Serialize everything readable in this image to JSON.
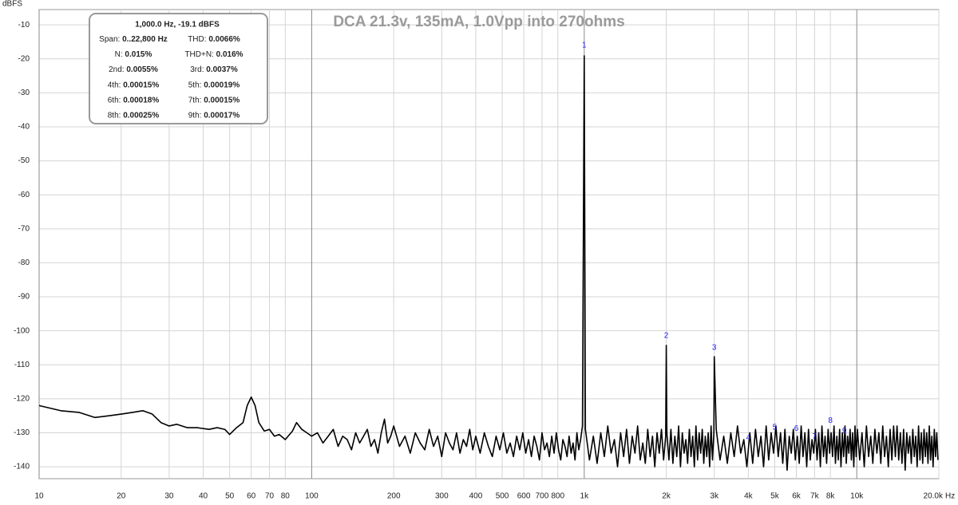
{
  "chart_data": {
    "type": "line",
    "title": "DCA 21.3v, 135mA, 1.0Vpp into 270ohms",
    "y_unit": "dBFS",
    "x_unit": "Hz",
    "log_x": true,
    "grid": true,
    "color": "#000000",
    "xlim": [
      10,
      20000
    ],
    "ylim": [
      -143.5,
      -5.5
    ],
    "yticks": [
      -10,
      -20,
      -30,
      -40,
      -50,
      -60,
      -70,
      -80,
      -90,
      -100,
      -110,
      -120,
      -130,
      -140
    ],
    "xticks": [
      10,
      20,
      30,
      40,
      50,
      60,
      70,
      80,
      100,
      200,
      300,
      400,
      500,
      600,
      700,
      800,
      {
        "value": 1000,
        "label": "1k"
      },
      {
        "value": 2000,
        "label": "2k"
      },
      {
        "value": 3000,
        "label": "3k"
      },
      {
        "value": 4000,
        "label": "4k"
      },
      {
        "value": 5000,
        "label": "5k"
      },
      {
        "value": 6000,
        "label": "6k"
      },
      {
        "value": 7000,
        "label": "7k"
      },
      {
        "value": 8000,
        "label": "8k"
      },
      {
        "value": 10000,
        "label": "10k"
      },
      {
        "value": 20000,
        "label": "20.0k"
      }
    ],
    "info_box": {
      "header": "1,000.0 Hz, -19.1 dBFS",
      "rows": [
        [
          {
            "label": "Span:",
            "value": "0..22,800 Hz"
          },
          {
            "label": "THD:",
            "value": "0.0066%"
          }
        ],
        [
          {
            "label": "N:",
            "value": "0.015%"
          },
          {
            "label": "THD+N:",
            "value": "0.016%"
          }
        ],
        [
          {
            "label": "2nd:",
            "value": "0.0055%"
          },
          {
            "label": "3rd:",
            "value": "0.0037%"
          }
        ],
        [
          {
            "label": "4th:",
            "value": "0.00015%"
          },
          {
            "label": "5th:",
            "value": "0.00019%"
          }
        ],
        [
          {
            "label": "6th:",
            "value": "0.00018%"
          },
          {
            "label": "7th:",
            "value": "0.00015%"
          }
        ],
        [
          {
            "label": "8th:",
            "value": "0.00025%"
          },
          {
            "label": "9th:",
            "value": "0.00017%"
          }
        ]
      ]
    },
    "markers": [
      {
        "label": "1",
        "x": 1000,
        "y": -16
      },
      {
        "label": "2",
        "x": 2000,
        "y": -101.5
      },
      {
        "label": "3",
        "x": 3000,
        "y": -105
      },
      {
        "label": "4",
        "x": 4000,
        "y": -131.5
      },
      {
        "label": "5",
        "x": 5000,
        "y": -128.5
      },
      {
        "label": "6",
        "x": 6000,
        "y": -128.8
      },
      {
        "label": "7",
        "x": 7000,
        "y": -131.2
      },
      {
        "label": "8",
        "x": 8000,
        "y": -126.5
      },
      {
        "label": "9",
        "x": 9000,
        "y": -129.5
      }
    ],
    "x": [
      10,
      12,
      14,
      16,
      18,
      20,
      22,
      24,
      26,
      28,
      30,
      32,
      35,
      38,
      42,
      45,
      48,
      50,
      53,
      56,
      58,
      60,
      62,
      64,
      67,
      70,
      73,
      76,
      80,
      85,
      88,
      92,
      96,
      100,
      105,
      110,
      115,
      120,
      125,
      130,
      135,
      140,
      145,
      150,
      155,
      160,
      165,
      170,
      175,
      180,
      185,
      190,
      195,
      200,
      210,
      220,
      230,
      240,
      250,
      260,
      270,
      280,
      290,
      300,
      310,
      320,
      330,
      340,
      350,
      360,
      370,
      380,
      390,
      400,
      415,
      430,
      445,
      460,
      475,
      490,
      505,
      520,
      535,
      550,
      565,
      580,
      595,
      610,
      625,
      640,
      655,
      670,
      685,
      700,
      715,
      730,
      745,
      760,
      775,
      790,
      805,
      820,
      835,
      850,
      865,
      880,
      895,
      910,
      925,
      940,
      955,
      970,
      985,
      1000,
      1010,
      1045,
      1080,
      1115,
      1150,
      1185,
      1220,
      1255,
      1290,
      1325,
      1360,
      1395,
      1430,
      1465,
      1500,
      1535,
      1570,
      1605,
      1640,
      1675,
      1710,
      1745,
      1780,
      1815,
      1850,
      1885,
      1920,
      1955,
      1990,
      2000,
      2010,
      2045,
      2080,
      2115,
      2150,
      2185,
      2220,
      2255,
      2290,
      2325,
      2360,
      2395,
      2430,
      2465,
      2500,
      2535,
      2570,
      2605,
      2640,
      2675,
      2710,
      2745,
      2780,
      2815,
      2850,
      2885,
      2920,
      2955,
      2990,
      3000,
      3050,
      3150,
      3250,
      3350,
      3450,
      3550,
      3650,
      3750,
      3850,
      3950,
      4050,
      4150,
      4250,
      4350,
      4450,
      4550,
      4650,
      4750,
      4850,
      4950,
      5050,
      5150,
      5250,
      5350,
      5450,
      5550,
      5650,
      5750,
      5850,
      5950,
      6050,
      6150,
      6250,
      6350,
      6450,
      6550,
      6650,
      6750,
      6850,
      6950,
      7050,
      7150,
      7250,
      7350,
      7450,
      7550,
      7650,
      7750,
      7850,
      7950,
      8050,
      8150,
      8250,
      8350,
      8450,
      8550,
      8650,
      8750,
      8850,
      8950,
      9050,
      9150,
      9250,
      9350,
      9450,
      9550,
      9650,
      9750,
      9850,
      9950,
      10050,
      10250,
      10450,
      10650,
      10850,
      11050,
      11250,
      11450,
      11650,
      11850,
      12050,
      12250,
      12450,
      12650,
      12850,
      13050,
      13250,
      13450,
      13650,
      13850,
      14050,
      14250,
      14450,
      14650,
      14850,
      15050,
      15250,
      15450,
      15650,
      15850,
      16050,
      16250,
      16450,
      16650,
      16850,
      17050,
      17250,
      17450,
      17650,
      17850,
      18050,
      18250,
      18450,
      18650,
      18850,
      19050,
      19250,
      19450,
      19650,
      19850
    ],
    "values": [
      -122,
      -123.5,
      -124,
      -125.5,
      -125,
      -124.5,
      -124,
      -123.5,
      -124.5,
      -127,
      -128,
      -127.5,
      -128.5,
      -128.5,
      -129,
      -128.5,
      -129,
      -130.5,
      -128.5,
      -127,
      -122,
      -119.5,
      -122,
      -127,
      -129.5,
      -129,
      -131,
      -130.5,
      -132,
      -129.5,
      -127,
      -129,
      -130,
      -131,
      -130,
      -133,
      -131,
      -129,
      -134,
      -131,
      -132,
      -135,
      -130,
      -133,
      -131,
      -129,
      -134,
      -132,
      -136,
      -130,
      -126,
      -133,
      -131,
      -128,
      -134,
      -131,
      -136,
      -130,
      -133,
      -135,
      -129,
      -134,
      -131,
      -137,
      -130,
      -133,
      -135,
      -130,
      -136,
      -132,
      -134,
      -129,
      -135,
      -131,
      -136,
      -130,
      -134,
      -137,
      -131,
      -135,
      -130,
      -136,
      -133,
      -137,
      -131,
      -135,
      -130,
      -136,
      -132,
      -137,
      -131,
      -134,
      -138,
      -130,
      -135,
      -133,
      -137,
      -131,
      -136,
      -130,
      -135,
      -138,
      -132,
      -134,
      -137,
      -131,
      -136,
      -133,
      -138,
      -130,
      -135,
      -132,
      -128,
      -19.1,
      -129,
      -138,
      -131,
      -139,
      -130,
      -137,
      -128,
      -136,
      -132,
      -140,
      -130,
      -137,
      -129,
      -139,
      -131,
      -136,
      -128,
      -138,
      -133,
      -139,
      -129,
      -137,
      -131,
      -140,
      -130,
      -136,
      -129,
      -138,
      -131,
      -104.3,
      -130,
      -138,
      -129,
      -139,
      -131,
      -137,
      -128,
      -140,
      -130,
      -136,
      -132,
      -139,
      -129,
      -137,
      -131,
      -140,
      -128,
      -138,
      -130,
      -136,
      -129,
      -139,
      -131,
      -137,
      -130,
      -140,
      -128,
      -138,
      -130,
      -107.6,
      -129,
      -138,
      -131,
      -139,
      -130,
      -137,
      -128,
      -136,
      -132,
      -140,
      -130,
      -139,
      -129,
      -137,
      -131,
      -140,
      -128,
      -138,
      -130,
      -136,
      -128,
      -137,
      -130,
      -139,
      -129,
      -141,
      -131,
      -136,
      -129,
      -138,
      -131,
      -139,
      -128,
      -137,
      -130,
      -140,
      -129,
      -138,
      -132,
      -136,
      -129,
      -138,
      -130,
      -140,
      -128,
      -137,
      -131,
      -139,
      -129,
      -136,
      -130,
      -137,
      -128,
      -139,
      -131,
      -138,
      -129,
      -140,
      -130,
      -137,
      -128,
      -139,
      -131,
      -136,
      -129,
      -138,
      -130,
      -140,
      -128,
      -137,
      -129,
      -138,
      -130,
      -140,
      -128,
      -137,
      -131,
      -139,
      -129,
      -136,
      -130,
      -139,
      -128,
      -137,
      -131,
      -140,
      -129,
      -138,
      -128,
      -137,
      -128,
      -138,
      -130,
      -139,
      -129,
      -141,
      -130,
      -136,
      -131,
      -139,
      -129,
      -137,
      -131,
      -140,
      -128,
      -138,
      -130,
      -139,
      -129,
      -137,
      -130,
      -139,
      -128,
      -138,
      -131,
      -140,
      -129,
      -137,
      -130,
      -138
    ]
  }
}
